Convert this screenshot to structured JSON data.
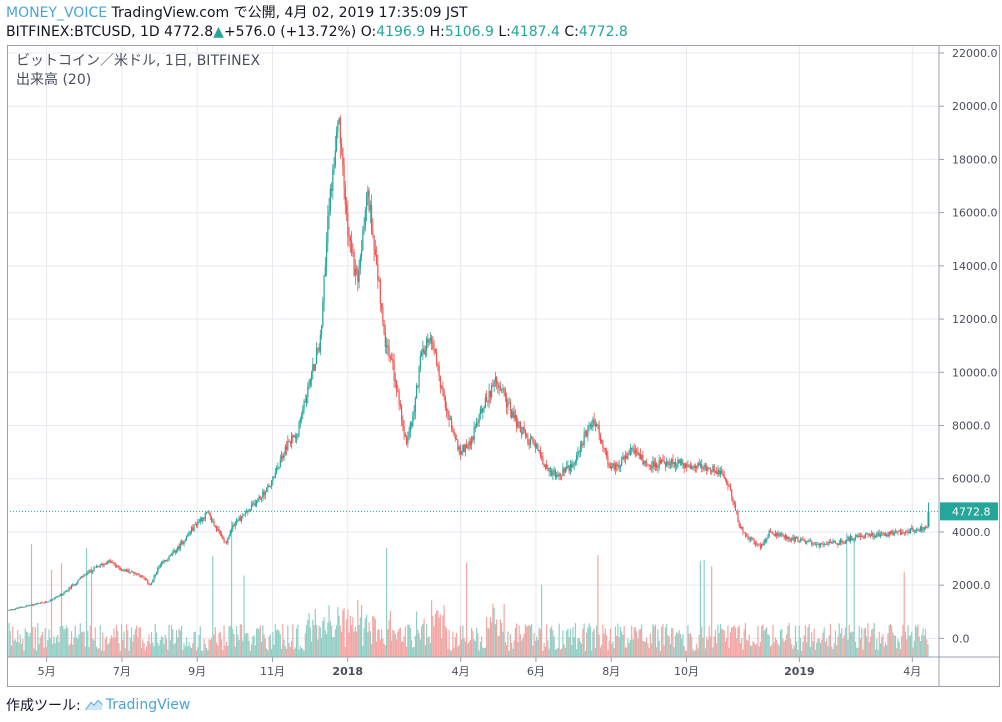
{
  "header": {
    "author": "MONEY_VOICE",
    "published_text": "TradingView.com で公開, 4月 02, 2019 17:35:09 JST",
    "symbol_text": "BITFINEX:BTCUSD, 1D",
    "last": "4772.8",
    "change": "+576.0 (+13.72%)",
    "open_label": "O:",
    "open": "4196.9",
    "high_label": "H:",
    "high": "5106.9",
    "low_label": "L:",
    "low": "4187.4",
    "close_label": "C:",
    "close": "4772.8"
  },
  "legend": {
    "title": "ビットコイン／米ドル, 1日, BITFINEX",
    "volume": "出来高 (20)"
  },
  "footer": {
    "made_with": "作成ツール:",
    "brand": "TradingView"
  },
  "colors": {
    "up": "#26a69a",
    "down": "#ef5350",
    "up_vol": "#8fd0c6",
    "down_vol": "#f4a6a4",
    "grid": "#e6e9ef",
    "accent": "#4ba3d8"
  },
  "chart_data": {
    "type": "candlestick",
    "symbol": "BITFINEX:BTCUSD",
    "interval": "1D",
    "last_price": 4772.8,
    "yticks": [
      "22000.0",
      "20000.0",
      "18000.0",
      "16000.0",
      "14000.0",
      "12000.0",
      "10000.0",
      "8000.0",
      "6000.0",
      "4000.0",
      "2000.0",
      "0.0"
    ],
    "ylim": [
      -700,
      22300
    ],
    "xticks": [
      {
        "label": "5月",
        "month": 4
      },
      {
        "label": "7月",
        "month": 6
      },
      {
        "label": "9月",
        "month": 8
      },
      {
        "label": "11月",
        "month": 10
      },
      {
        "label": "2018",
        "month": 12
      },
      {
        "label": "4月",
        "month": 15
      },
      {
        "label": "6月",
        "month": 17
      },
      {
        "label": "8月",
        "month": 19
      },
      {
        "label": "10月",
        "month": 21
      },
      {
        "label": "2019",
        "month": 24
      },
      {
        "label": "4月",
        "month": 27
      }
    ],
    "x_start_month": 3.0,
    "x_end_month": 27.55,
    "price_anchors": [
      [
        3.0,
        1050
      ],
      [
        3.5,
        1220
      ],
      [
        4.0,
        1350
      ],
      [
        4.5,
        1700
      ],
      [
        5.0,
        2350
      ],
      [
        5.4,
        2700
      ],
      [
        5.7,
        2900
      ],
      [
        6.0,
        2600
      ],
      [
        6.5,
        2400
      ],
      [
        6.8,
        2000
      ],
      [
        7.0,
        2650
      ],
      [
        7.5,
        3350
      ],
      [
        8.0,
        4300
      ],
      [
        8.3,
        4700
      ],
      [
        8.6,
        4000
      ],
      [
        8.8,
        3600
      ],
      [
        9.0,
        4300
      ],
      [
        9.4,
        4800
      ],
      [
        10.0,
        5800
      ],
      [
        10.4,
        7200
      ],
      [
        10.7,
        7800
      ],
      [
        11.0,
        9500
      ],
      [
        11.3,
        11200
      ],
      [
        11.55,
        16500
      ],
      [
        11.8,
        19300
      ],
      [
        12.05,
        15000
      ],
      [
        12.3,
        13300
      ],
      [
        12.55,
        16800
      ],
      [
        12.8,
        14200
      ],
      [
        13.0,
        11200
      ],
      [
        13.2,
        10400
      ],
      [
        13.45,
        8500
      ],
      [
        13.6,
        7300
      ],
      [
        13.8,
        8600
      ],
      [
        14.0,
        10800
      ],
      [
        14.25,
        11300
      ],
      [
        14.5,
        9600
      ],
      [
        14.7,
        8400
      ],
      [
        15.0,
        7000
      ],
      [
        15.3,
        7400
      ],
      [
        15.6,
        8700
      ],
      [
        16.0,
        9700
      ],
      [
        16.4,
        8400
      ],
      [
        16.8,
        7500
      ],
      [
        17.0,
        7300
      ],
      [
        17.3,
        6400
      ],
      [
        17.6,
        6100
      ],
      [
        18.0,
        6500
      ],
      [
        18.3,
        7500
      ],
      [
        18.6,
        8200
      ],
      [
        18.8,
        7300
      ],
      [
        19.0,
        6400
      ],
      [
        19.3,
        6600
      ],
      [
        19.6,
        7100
      ],
      [
        20.0,
        6500
      ],
      [
        20.5,
        6600
      ],
      [
        21.0,
        6550
      ],
      [
        21.5,
        6400
      ],
      [
        21.95,
        6300
      ],
      [
        22.2,
        5600
      ],
      [
        22.45,
        4200
      ],
      [
        22.75,
        3700
      ],
      [
        23.0,
        3400
      ],
      [
        23.25,
        4000
      ],
      [
        23.7,
        3800
      ],
      [
        24.0,
        3700
      ],
      [
        24.6,
        3500
      ],
      [
        25.1,
        3600
      ],
      [
        25.6,
        3850
      ],
      [
        26.3,
        3900
      ],
      [
        27.0,
        4050
      ],
      [
        27.45,
        4200
      ]
    ],
    "last_candle": {
      "open": 4196.9,
      "high": 5106.9,
      "low": 4187.4,
      "close": 4772.8
    }
  }
}
